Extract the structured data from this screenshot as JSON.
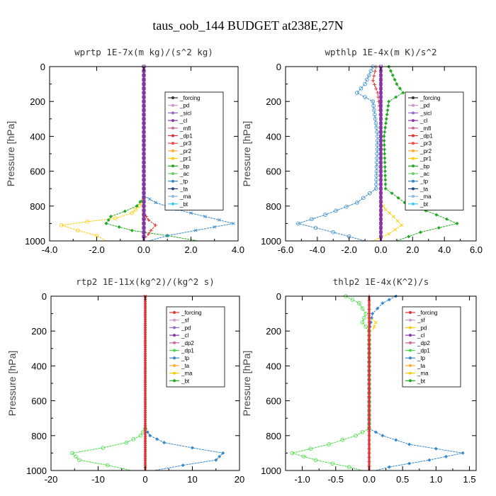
{
  "figure_title": "taus_oob_144  BUDGET at238E,27N",
  "chart_data": [
    {
      "type": "line",
      "title": "wprtp  1E-7x(m kg)/(s^2 kg)",
      "ylabel": "Pressure [hPa]",
      "xlim": [
        -4.0,
        4.0
      ],
      "ylim": [
        1000,
        0
      ],
      "xticks": [
        -4.0,
        -2.0,
        0.0,
        2.0,
        4.0
      ],
      "xtick_labels": [
        "-4.0",
        "-2.0",
        "0.0",
        "2.0",
        "4.0"
      ],
      "yticks": [
        0,
        200,
        400,
        600,
        800,
        1000
      ],
      "legend": [
        "_forcing",
        "_pd",
        "_sicl",
        "_cl",
        "_mfl",
        "_dp1",
        "_pr3",
        "_pr2",
        "_pr1",
        "_bp",
        "_ac",
        "_tp",
        "_ta",
        "_ma",
        "_bt"
      ],
      "series": [
        {
          "name": "_pr1",
          "color": "#ffcc00",
          "points": [
            [
              0,
              760
            ],
            [
              -0.2,
              800
            ],
            [
              -0.5,
              840
            ],
            [
              -1.2,
              870
            ],
            [
              -2.4,
              890
            ],
            [
              -3.5,
              910
            ],
            [
              -2.8,
              940
            ],
            [
              -2.0,
              970
            ],
            [
              -1.6,
              1000
            ]
          ]
        },
        {
          "name": "_bp",
          "color": "#22aa22",
          "points": [
            [
              0,
              750
            ],
            [
              -0.3,
              800
            ],
            [
              -0.8,
              830
            ],
            [
              -1.4,
              860
            ],
            [
              -1.6,
              900
            ],
            [
              -0.5,
              940
            ],
            [
              1.0,
              970
            ],
            [
              2.3,
              1000
            ]
          ]
        },
        {
          "name": "_tp",
          "color": "#3388cc",
          "points": [
            [
              0,
              740
            ],
            [
              0.5,
              780
            ],
            [
              1.4,
              820
            ],
            [
              2.6,
              860
            ],
            [
              3.8,
              900
            ],
            [
              2.2,
              940
            ],
            [
              1.0,
              970
            ],
            [
              0.2,
              1000
            ]
          ]
        },
        {
          "name": "_dp1",
          "color": "#dd3333",
          "points": [
            [
              0,
              840
            ],
            [
              0.2,
              880
            ],
            [
              0.5,
              910
            ],
            [
              0.3,
              940
            ],
            [
              0.1,
              980
            ]
          ]
        },
        {
          "name": "_forcing",
          "color": "#333333",
          "points": [
            [
              0,
              0
            ],
            [
              0,
              1000
            ]
          ]
        },
        {
          "name": "_cl",
          "color": "#8833aa",
          "points": [
            [
              0,
              0
            ],
            [
              0,
              1000
            ]
          ]
        }
      ]
    },
    {
      "type": "line",
      "title": "wpthlp  1E-4x(m K)/s^2",
      "ylabel": "Pressure [hPa]",
      "xlim": [
        -6.0,
        6.0
      ],
      "ylim": [
        1000,
        0
      ],
      "xticks": [
        -6.0,
        -4.0,
        -2.0,
        0.0,
        2.0,
        4.0,
        6.0
      ],
      "xtick_labels": [
        "-6.0",
        "-4.0",
        "-2.0",
        "0.0",
        "2.0",
        "4.0",
        "6.0"
      ],
      "yticks": [
        0,
        200,
        400,
        600,
        800,
        1000
      ],
      "legend": [
        "_forcing",
        "_pd",
        "_sicl",
        "_cl",
        "_mfl",
        "_dp1",
        "_pr3",
        "_pr2",
        "_pr1",
        "_bp",
        "_ac",
        "_tp",
        "_ta",
        "_ma",
        "_bt"
      ],
      "series": [
        {
          "name": "_tp",
          "color": "#3388cc",
          "points": [
            [
              -0.5,
              0
            ],
            [
              -1.0,
              100
            ],
            [
              -1.5,
              150
            ],
            [
              -0.5,
              200
            ],
            [
              -0.2,
              400
            ],
            [
              -0.3,
              700
            ],
            [
              -1.5,
              780
            ],
            [
              -3.5,
              850
            ],
            [
              -5.2,
              900
            ],
            [
              -3.0,
              950
            ],
            [
              -1.0,
              1000
            ]
          ]
        },
        {
          "name": "_bp",
          "color": "#22aa22",
          "points": [
            [
              0.5,
              0
            ],
            [
              1.0,
              100
            ],
            [
              1.4,
              150
            ],
            [
              0.5,
              200
            ],
            [
              0.2,
              400
            ],
            [
              0.3,
              700
            ],
            [
              1.5,
              780
            ],
            [
              3.5,
              850
            ],
            [
              4.8,
              900
            ],
            [
              2.5,
              950
            ],
            [
              1.0,
              1000
            ]
          ]
        },
        {
          "name": "_pr1",
          "color": "#ffcc00",
          "points": [
            [
              0,
              780
            ],
            [
              0.3,
              820
            ],
            [
              0.8,
              860
            ],
            [
              1.3,
              910
            ],
            [
              0.5,
              960
            ],
            [
              -0.5,
              1000
            ]
          ]
        },
        {
          "name": "_dp1",
          "color": "#dd3333",
          "points": [
            [
              -0.3,
              0
            ],
            [
              -0.5,
              80
            ],
            [
              -0.2,
              150
            ],
            [
              0,
              300
            ],
            [
              0,
              1000
            ]
          ]
        },
        {
          "name": "_cl",
          "color": "#8833aa",
          "points": [
            [
              0,
              0
            ],
            [
              0,
              1000
            ]
          ]
        }
      ]
    },
    {
      "type": "line",
      "title": "rtp2  1E-11x(kg^2)/(kg^2 s)",
      "ylabel": "Pressure [hPa]",
      "xlim": [
        -20,
        20
      ],
      "ylim": [
        1000,
        0
      ],
      "xticks": [
        -20,
        -10,
        0,
        10,
        20
      ],
      "xtick_labels": [
        "-20",
        "-10",
        "0",
        "10",
        "20"
      ],
      "yticks": [
        0,
        200,
        400,
        600,
        800,
        1000
      ],
      "legend": [
        "_forcing",
        "_sf",
        "_pd",
        "_cl",
        "_dp2",
        "_dp1",
        "_tp",
        "_ta",
        "_ma",
        "_bt"
      ],
      "series": [
        {
          "name": "_dp1",
          "color": "#44dd44",
          "points": [
            [
              0,
              760
            ],
            [
              -1,
              800
            ],
            [
              -4,
              840
            ],
            [
              -9,
              870
            ],
            [
              -15.5,
              900
            ],
            [
              -14,
              940
            ],
            [
              -8,
              970
            ],
            [
              -3,
              1000
            ]
          ]
        },
        {
          "name": "_tp",
          "color": "#3388cc",
          "points": [
            [
              0,
              760
            ],
            [
              1,
              800
            ],
            [
              4,
              840
            ],
            [
              10,
              870
            ],
            [
              16.5,
              900
            ],
            [
              15,
              940
            ],
            [
              8,
              970
            ],
            [
              2,
              1000
            ]
          ]
        },
        {
          "name": "_forcing",
          "color": "#dd3333",
          "points": [
            [
              0,
              0
            ],
            [
              0,
              1000
            ]
          ]
        }
      ]
    },
    {
      "type": "line",
      "title": "thlp2  1E-4x(K^2)/s",
      "ylabel": "Pressure [hPa]",
      "xlim": [
        -1.25,
        1.6
      ],
      "ylim": [
        1000,
        0
      ],
      "xticks": [
        -1.0,
        -0.5,
        0.0,
        0.5,
        1.0,
        1.5
      ],
      "xtick_labels": [
        "-1.0",
        "-0.5",
        "0.0",
        "0.5",
        "1.0",
        "1.5"
      ],
      "yticks": [
        0,
        200,
        400,
        600,
        800,
        1000
      ],
      "legend": [
        "_forcing",
        "_sf",
        "_pd",
        "_cl",
        "_dp2",
        "_dp1",
        "_tp",
        "_ta",
        "_ma",
        "_bt"
      ],
      "series": [
        {
          "name": "_dp1",
          "color": "#44dd44",
          "points": [
            [
              -0.35,
              0
            ],
            [
              -0.15,
              40
            ],
            [
              -0.05,
              100
            ],
            [
              -0.1,
              150
            ],
            [
              0,
              200
            ],
            [
              0,
              760
            ],
            [
              -0.2,
              800
            ],
            [
              -0.6,
              850
            ],
            [
              -1.15,
              900
            ],
            [
              -0.8,
              940
            ],
            [
              -0.3,
              980
            ],
            [
              -0.1,
              1000
            ]
          ]
        },
        {
          "name": "_tp",
          "color": "#3388cc",
          "points": [
            [
              0.4,
              0
            ],
            [
              0.2,
              40
            ],
            [
              0.05,
              100
            ],
            [
              0,
              200
            ],
            [
              0,
              760
            ],
            [
              0.2,
              800
            ],
            [
              0.6,
              850
            ],
            [
              1.4,
              900
            ],
            [
              0.9,
              940
            ],
            [
              0.3,
              980
            ],
            [
              0.1,
              1000
            ]
          ]
        },
        {
          "name": "_pd",
          "color": "#ffcc00",
          "points": [
            [
              0,
              120
            ],
            [
              0.1,
              150
            ],
            [
              0.05,
              200
            ]
          ]
        },
        {
          "name": "_forcing",
          "color": "#dd3333",
          "points": [
            [
              0,
              0
            ],
            [
              0,
              1000
            ]
          ]
        }
      ]
    }
  ]
}
